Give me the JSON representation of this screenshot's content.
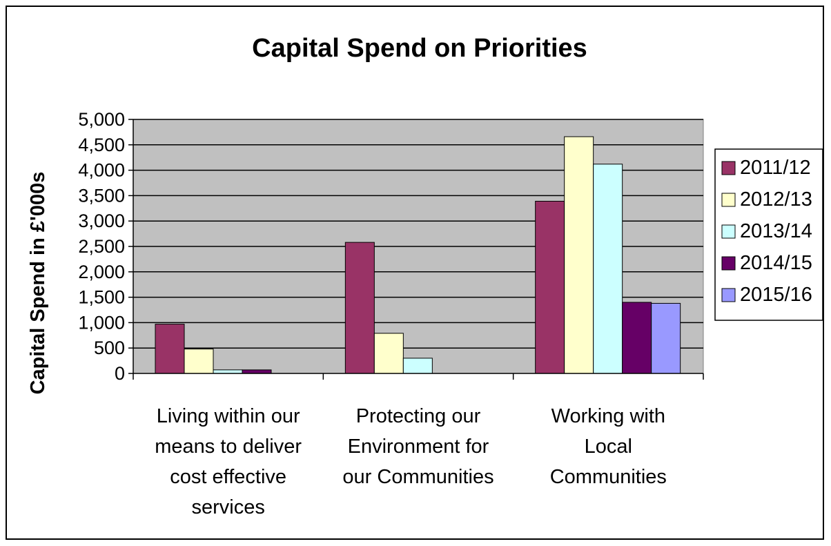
{
  "chart_data": {
    "type": "bar",
    "title": "Capital Spend on Priorities",
    "xlabel": "",
    "ylabel": "Capital Spend in £'000s",
    "ylim": [
      0,
      5000
    ],
    "yticks": [
      0,
      500,
      1000,
      1500,
      2000,
      2500,
      3000,
      3500,
      4000,
      4500,
      5000
    ],
    "ytick_labels": [
      "0",
      "500",
      "1,000",
      "1,500",
      "2,000",
      "2,500",
      "3,000",
      "3,500",
      "4,000",
      "4,500",
      "5,000"
    ],
    "grid": true,
    "legend_position": "right",
    "categories": [
      [
        "Living within our",
        "means to deliver",
        "cost effective",
        "services"
      ],
      [
        "Protecting our",
        "Environment for",
        "our Communities"
      ],
      [
        "Working with",
        "Local",
        "Communities"
      ]
    ],
    "series": [
      {
        "name": "2011/12",
        "color": "#993366",
        "values": [
          970,
          2580,
          3390
        ]
      },
      {
        "name": "2012/13",
        "color": "#FFFFCC",
        "values": [
          480,
          790,
          4660
        ]
      },
      {
        "name": "2013/14",
        "color": "#CCFFFF",
        "values": [
          70,
          300,
          4120
        ]
      },
      {
        "name": "2014/15",
        "color": "#660066",
        "values": [
          70,
          0,
          1400
        ]
      },
      {
        "name": "2015/16",
        "color": "#9999FF",
        "values": [
          0,
          0,
          1380
        ]
      }
    ],
    "plot_background": "#C0C0C0"
  }
}
